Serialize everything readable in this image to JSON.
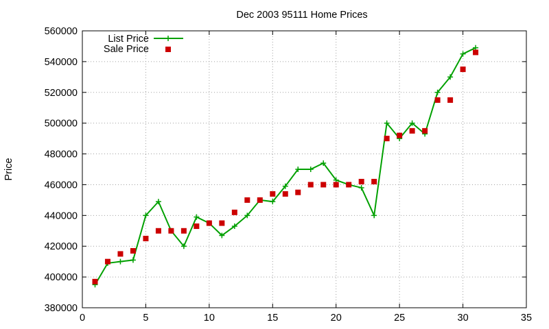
{
  "chart_data": {
    "type": "line",
    "title": "Dec 2003 95111 Home Prices",
    "xlabel": "",
    "ylabel": "Price",
    "xlim": [
      0,
      35
    ],
    "ylim": [
      380000,
      560000
    ],
    "x_ticks": [
      0,
      5,
      10,
      15,
      20,
      25,
      30,
      35
    ],
    "y_ticks": [
      380000,
      400000,
      420000,
      440000,
      460000,
      480000,
      500000,
      520000,
      540000,
      560000
    ],
    "grid": true,
    "legend_position": "top-left",
    "series": [
      {
        "name": "List Price",
        "style": "line-with-plus-markers",
        "color": "#00a000",
        "x": [
          1,
          2,
          3,
          4,
          5,
          6,
          7,
          8,
          9,
          10,
          11,
          12,
          13,
          14,
          15,
          16,
          17,
          18,
          19,
          20,
          21,
          22,
          23,
          24,
          25,
          26,
          27,
          28,
          29,
          30,
          31
        ],
        "y": [
          395000,
          409000,
          410000,
          411000,
          440000,
          449000,
          430000,
          420000,
          439000,
          435000,
          427000,
          433000,
          440000,
          450000,
          449000,
          459000,
          470000,
          470000,
          474000,
          463000,
          460000,
          458000,
          440000,
          500000,
          490000,
          500000,
          493000,
          520000,
          530000,
          545000,
          549000
        ]
      },
      {
        "name": "Sale Price",
        "style": "square-markers",
        "color": "#cc0000",
        "x": [
          1,
          2,
          3,
          4,
          5,
          6,
          7,
          8,
          9,
          10,
          11,
          12,
          13,
          14,
          15,
          16,
          17,
          18,
          19,
          20,
          21,
          22,
          23,
          24,
          25,
          26,
          27,
          28,
          29,
          30,
          31
        ],
        "y": [
          397000,
          410000,
          415000,
          417000,
          425000,
          430000,
          430000,
          430000,
          433000,
          435000,
          435000,
          442000,
          450000,
          450000,
          454000,
          454000,
          455000,
          460000,
          460000,
          460000,
          460000,
          462000,
          462000,
          490000,
          492000,
          495000,
          495000,
          515000,
          515000,
          535000,
          546000
        ]
      }
    ]
  }
}
